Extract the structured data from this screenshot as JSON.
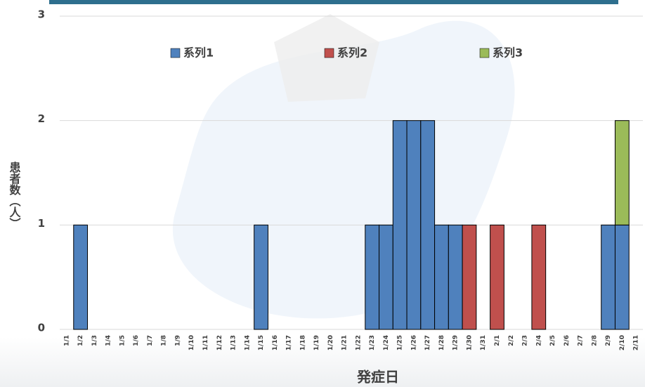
{
  "chart_data": {
    "type": "bar",
    "stacked": true,
    "x_label": "発症日",
    "y_label": "患者数（人）",
    "categories": [
      "1/1",
      "1/2",
      "1/3",
      "1/4",
      "1/5",
      "1/6",
      "1/7",
      "1/8",
      "1/9",
      "1/10",
      "1/11",
      "1/12",
      "1/13",
      "1/14",
      "1/15",
      "1/16",
      "1/17",
      "1/18",
      "1/19",
      "1/20",
      "1/21",
      "1/22",
      "1/23",
      "1/24",
      "1/25",
      "1/26",
      "1/27",
      "1/28",
      "1/29",
      "1/30",
      "1/31",
      "2/1",
      "2/2",
      "2/3",
      "2/4",
      "2/5",
      "2/6",
      "2/7",
      "2/8",
      "2/9",
      "2/10",
      "2/11"
    ],
    "series": [
      {
        "name": "系列1",
        "color": "#4f81bd",
        "values": [
          0,
          1,
          0,
          0,
          0,
          0,
          0,
          0,
          0,
          0,
          0,
          0,
          0,
          0,
          1,
          0,
          0,
          0,
          0,
          0,
          0,
          0,
          1,
          1,
          2,
          2,
          2,
          1,
          1,
          0,
          0,
          0,
          0,
          0,
          0,
          0,
          0,
          0,
          0,
          1,
          1,
          0
        ]
      },
      {
        "name": "系列2",
        "color": "#c0504d",
        "values": [
          0,
          0,
          0,
          0,
          0,
          0,
          0,
          0,
          0,
          0,
          0,
          0,
          0,
          0,
          0,
          0,
          0,
          0,
          0,
          0,
          0,
          0,
          0,
          0,
          0,
          0,
          0,
          0,
          0,
          1,
          0,
          1,
          0,
          0,
          1,
          0,
          0,
          0,
          0,
          0,
          0,
          0
        ]
      },
      {
        "name": "系列3",
        "color": "#9bbb59",
        "values": [
          0,
          0,
          0,
          0,
          0,
          0,
          0,
          0,
          0,
          0,
          0,
          0,
          0,
          0,
          0,
          0,
          0,
          0,
          0,
          0,
          0,
          0,
          0,
          0,
          0,
          0,
          0,
          0,
          0,
          0,
          0,
          0,
          0,
          0,
          0,
          0,
          0,
          0,
          0,
          0,
          1,
          0
        ]
      }
    ],
    "ylim": [
      0,
      3
    ],
    "yticks": [
      0,
      1,
      2,
      3
    ],
    "grid": true,
    "legend": "top"
  }
}
